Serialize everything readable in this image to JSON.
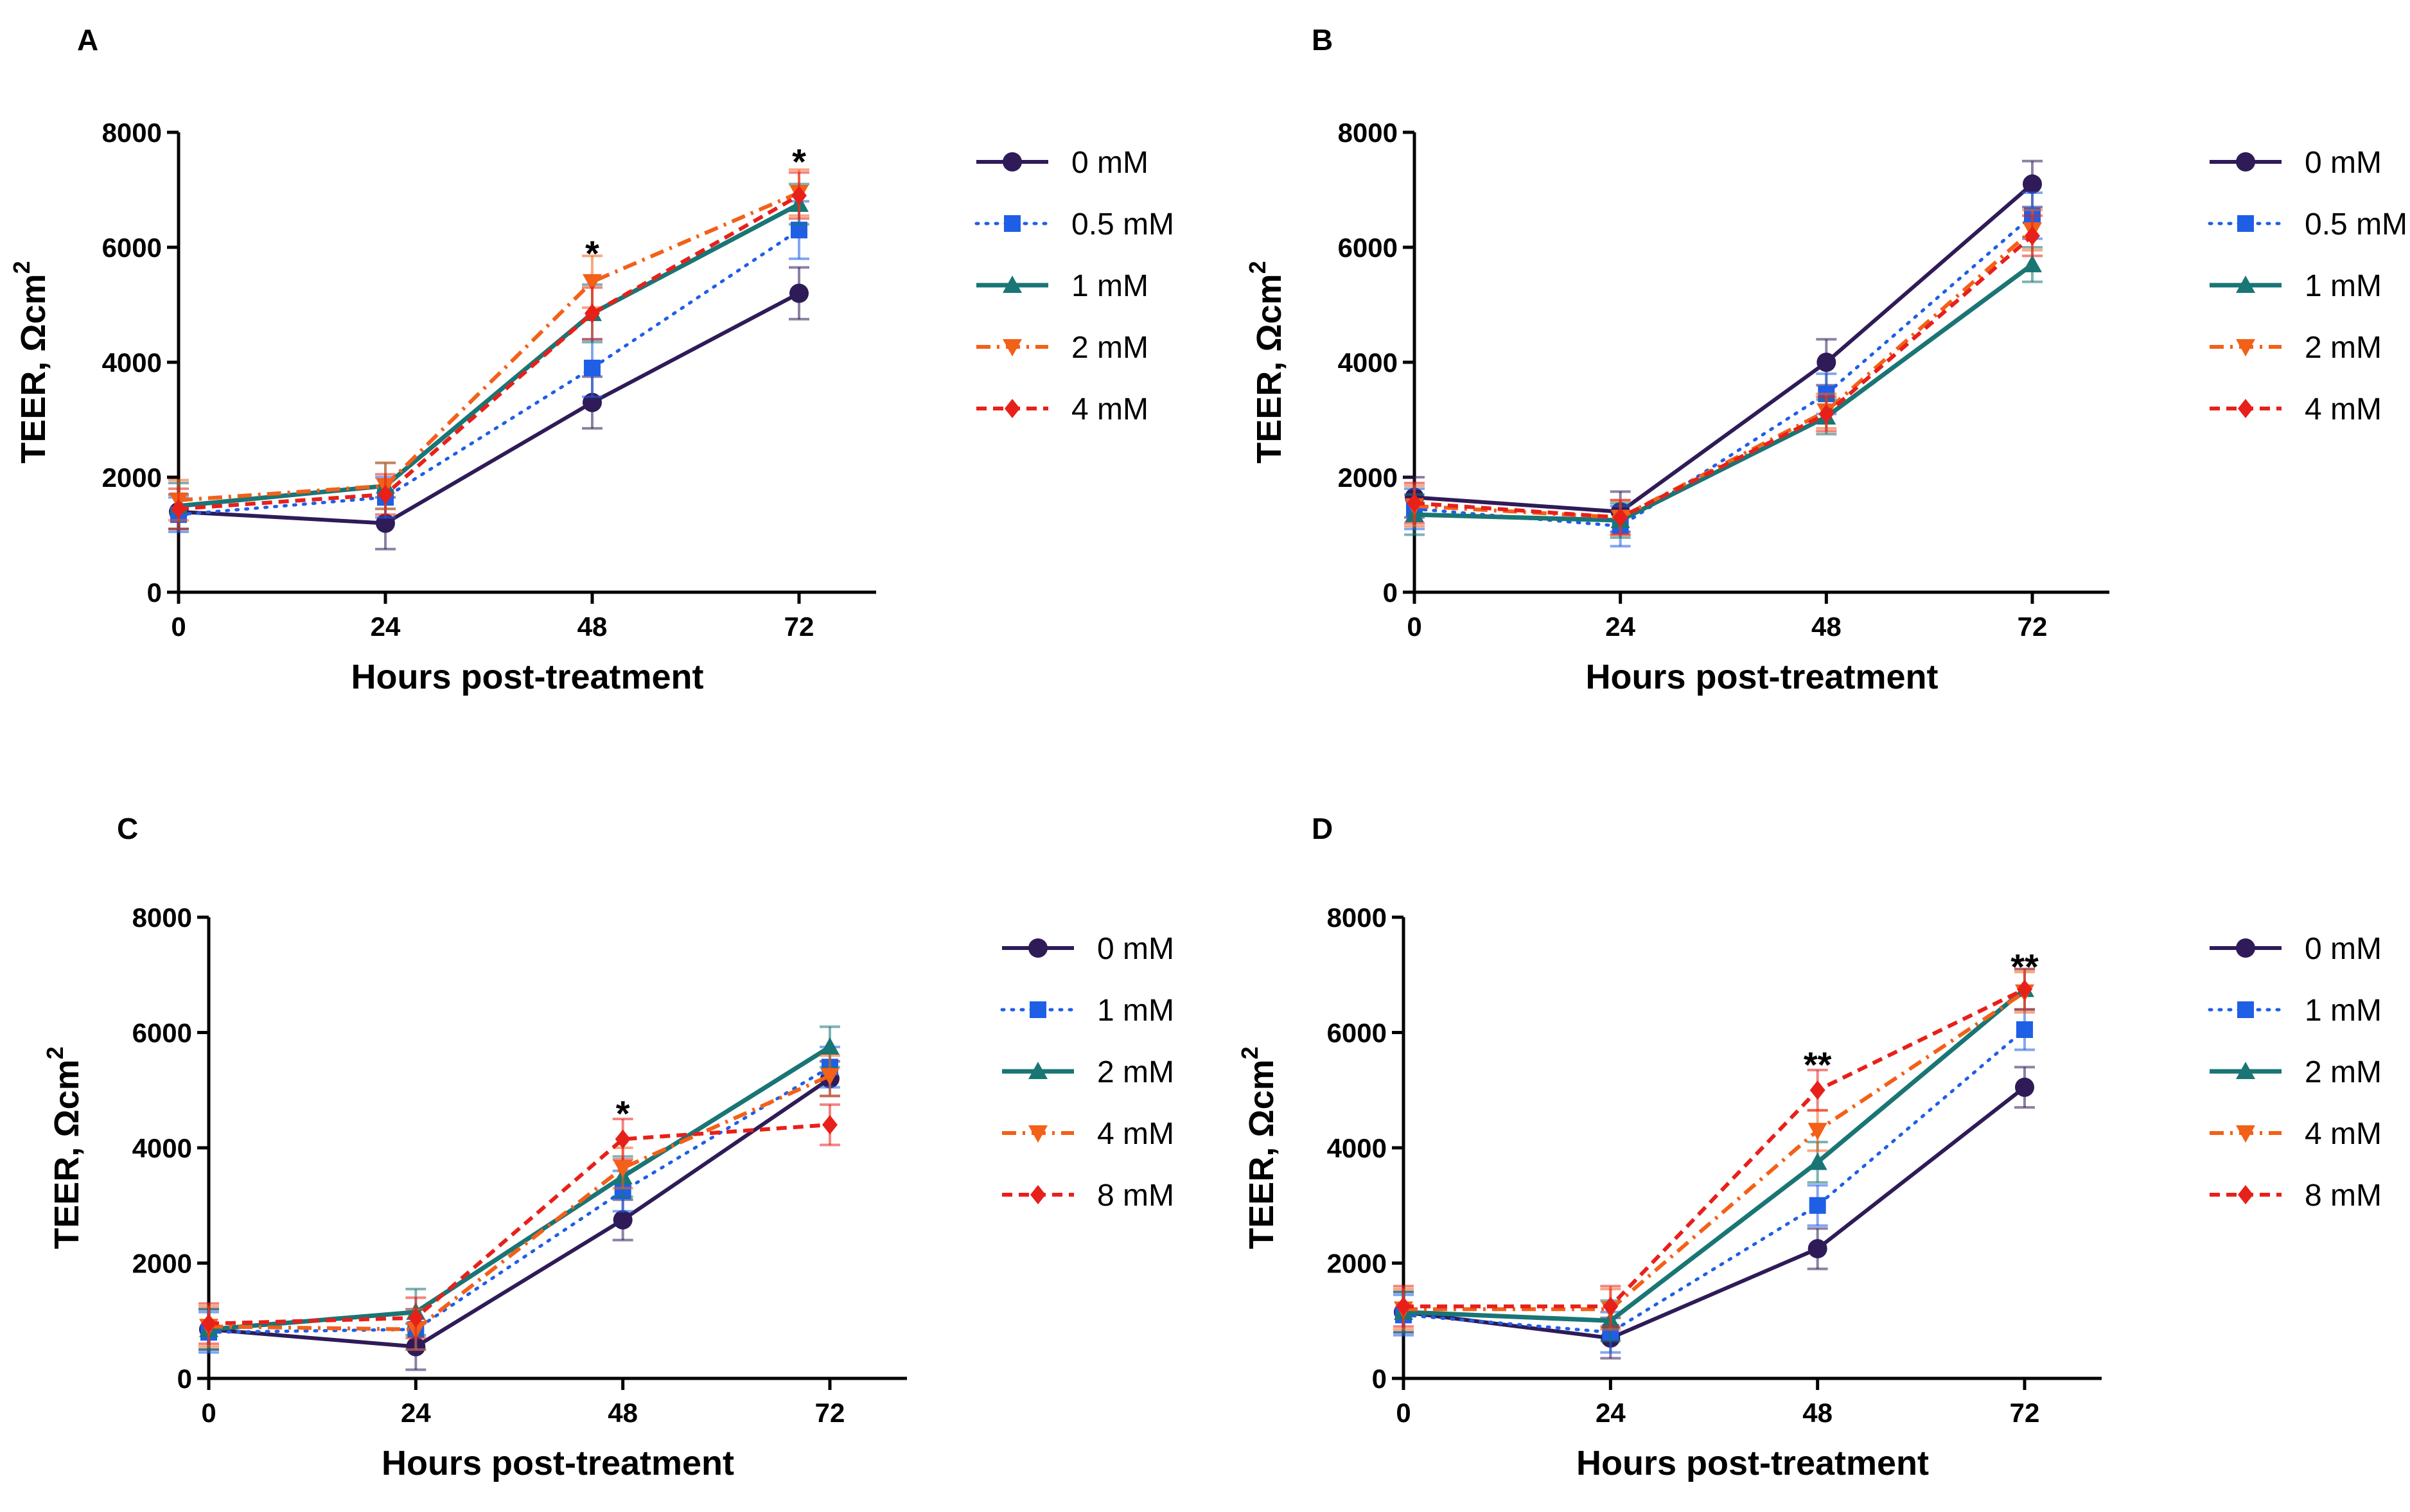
{
  "figure": {
    "panels": [
      "A",
      "B",
      "C",
      "D"
    ]
  },
  "colors": {
    "0": "#2f1b58",
    "1": "#1f5fe6",
    "2": "#1a7575",
    "3": "#f36018",
    "4": "#e8201a"
  },
  "chart_data": [
    {
      "panel": "A",
      "type": "line",
      "xlabel": "Hours post-treatment",
      "ylabel": "TEER, Ωcm²",
      "ylabel_main": "TEER, Ωcm",
      "ylabel_sup": "2",
      "x": [
        0,
        24,
        48,
        72
      ],
      "x_ticks": [
        "0",
        "24",
        "48",
        "72"
      ],
      "y_ticks": [
        "0",
        "2000",
        "4000",
        "6000",
        "8000"
      ],
      "ylim": [
        0,
        8000
      ],
      "legend_position": "right",
      "series": [
        {
          "name": "0 mM",
          "style": 0,
          "values": [
            1400,
            1200,
            3300,
            5200
          ],
          "err": [
            300,
            450,
            450,
            450
          ]
        },
        {
          "name": "0.5 mM",
          "style": 1,
          "values": [
            1350,
            1650,
            3900,
            6300
          ],
          "err": [
            300,
            350,
            500,
            500
          ]
        },
        {
          "name": "1 mM",
          "style": 2,
          "values": [
            1500,
            1850,
            4850,
            6750
          ],
          "err": [
            400,
            400,
            500,
            350
          ]
        },
        {
          "name": "2 mM",
          "style": 3,
          "values": [
            1600,
            1850,
            5400,
            6950
          ],
          "err": [
            350,
            400,
            450,
            400
          ]
        },
        {
          "name": "4 mM",
          "style": 4,
          "values": [
            1450,
            1700,
            4850,
            6900
          ],
          "err": [
            350,
            350,
            450,
            400
          ]
        }
      ],
      "annotations": [
        {
          "x": 48,
          "y": 5900,
          "text": "*"
        },
        {
          "x": 72,
          "y": 7500,
          "text": "*"
        }
      ]
    },
    {
      "panel": "B",
      "type": "line",
      "xlabel": "Hours post-treatment",
      "ylabel": "TEER, Ωcm²",
      "ylabel_main": "TEER, Ωcm",
      "ylabel_sup": "2",
      "x": [
        0,
        24,
        48,
        72
      ],
      "x_ticks": [
        "0",
        "24",
        "48",
        "72"
      ],
      "y_ticks": [
        "0",
        "2000",
        "4000",
        "6000",
        "8000"
      ],
      "ylim": [
        0,
        8000
      ],
      "legend_position": "right",
      "series": [
        {
          "name": "0 mM",
          "style": 0,
          "values": [
            1650,
            1400,
            4000,
            7100
          ],
          "err": [
            350,
            350,
            400,
            400
          ]
        },
        {
          "name": "0.5 mM",
          "style": 1,
          "values": [
            1450,
            1150,
            3450,
            6550
          ],
          "err": [
            350,
            350,
            350,
            400
          ]
        },
        {
          "name": "1 mM",
          "style": 2,
          "values": [
            1350,
            1250,
            3050,
            5700
          ],
          "err": [
            350,
            300,
            300,
            300
          ]
        },
        {
          "name": "2 mM",
          "style": 3,
          "values": [
            1500,
            1300,
            3150,
            6300
          ],
          "err": [
            350,
            300,
            300,
            350
          ]
        },
        {
          "name": "4 mM",
          "style": 4,
          "values": [
            1550,
            1300,
            3100,
            6200
          ],
          "err": [
            350,
            300,
            300,
            350
          ]
        }
      ],
      "annotations": []
    },
    {
      "panel": "C",
      "type": "line",
      "xlabel": "Hours post-treatment",
      "ylabel": "TEER, Ωcm²",
      "ylabel_main": "TEER, Ωcm",
      "ylabel_sup": "2",
      "x": [
        0,
        24,
        48,
        72
      ],
      "x_ticks": [
        "0",
        "24",
        "48",
        "72"
      ],
      "y_ticks": [
        "0",
        "2000",
        "4000",
        "6000",
        "8000"
      ],
      "ylim": [
        0,
        8000
      ],
      "legend_position": "right",
      "series": [
        {
          "name": "0 mM",
          "style": 0,
          "values": [
            850,
            550,
            2750,
            5200
          ],
          "err": [
            350,
            400,
            350,
            300
          ]
        },
        {
          "name": "1 mM",
          "style": 1,
          "values": [
            800,
            850,
            3250,
            5400
          ],
          "err": [
            350,
            350,
            350,
            350
          ]
        },
        {
          "name": "2 mM",
          "style": 2,
          "values": [
            850,
            1150,
            3500,
            5750
          ],
          "err": [
            350,
            400,
            350,
            350
          ]
        },
        {
          "name": "4 mM",
          "style": 3,
          "values": [
            900,
            850,
            3650,
            5250
          ],
          "err": [
            350,
            350,
            350,
            350
          ]
        },
        {
          "name": "8 mM",
          "style": 4,
          "values": [
            950,
            1050,
            4150,
            4400
          ],
          "err": [
            350,
            350,
            350,
            350
          ]
        }
      ],
      "annotations": [
        {
          "x": 48,
          "y": 4600,
          "text": "*"
        }
      ]
    },
    {
      "panel": "D",
      "type": "line",
      "xlabel": "Hours post-treatment",
      "ylabel": "TEER, Ωcm²",
      "ylabel_main": "TEER, Ωcm",
      "ylabel_sup": "2",
      "x": [
        0,
        24,
        48,
        72
      ],
      "x_ticks": [
        "0",
        "24",
        "48",
        "72"
      ],
      "y_ticks": [
        "0",
        "2000",
        "4000",
        "6000",
        "8000"
      ],
      "ylim": [
        0,
        8000
      ],
      "legend_position": "right",
      "series": [
        {
          "name": "0 mM",
          "style": 0,
          "values": [
            1150,
            700,
            2250,
            5050
          ],
          "err": [
            350,
            350,
            350,
            350
          ]
        },
        {
          "name": "1 mM",
          "style": 1,
          "values": [
            1100,
            800,
            3000,
            6050
          ],
          "err": [
            350,
            350,
            350,
            350
          ]
        },
        {
          "name": "2 mM",
          "style": 2,
          "values": [
            1150,
            1000,
            3750,
            6750
          ],
          "err": [
            350,
            350,
            350,
            350
          ]
        },
        {
          "name": "4 mM",
          "style": 3,
          "values": [
            1200,
            1200,
            4300,
            6700
          ],
          "err": [
            350,
            350,
            350,
            350
          ]
        },
        {
          "name": "8 mM",
          "style": 4,
          "values": [
            1250,
            1250,
            5000,
            6750
          ],
          "err": [
            350,
            350,
            350,
            350
          ]
        }
      ],
      "annotations": [
        {
          "x": 48,
          "y": 5450,
          "text": "**"
        },
        {
          "x": 72,
          "y": 7150,
          "text": "**"
        }
      ]
    }
  ]
}
